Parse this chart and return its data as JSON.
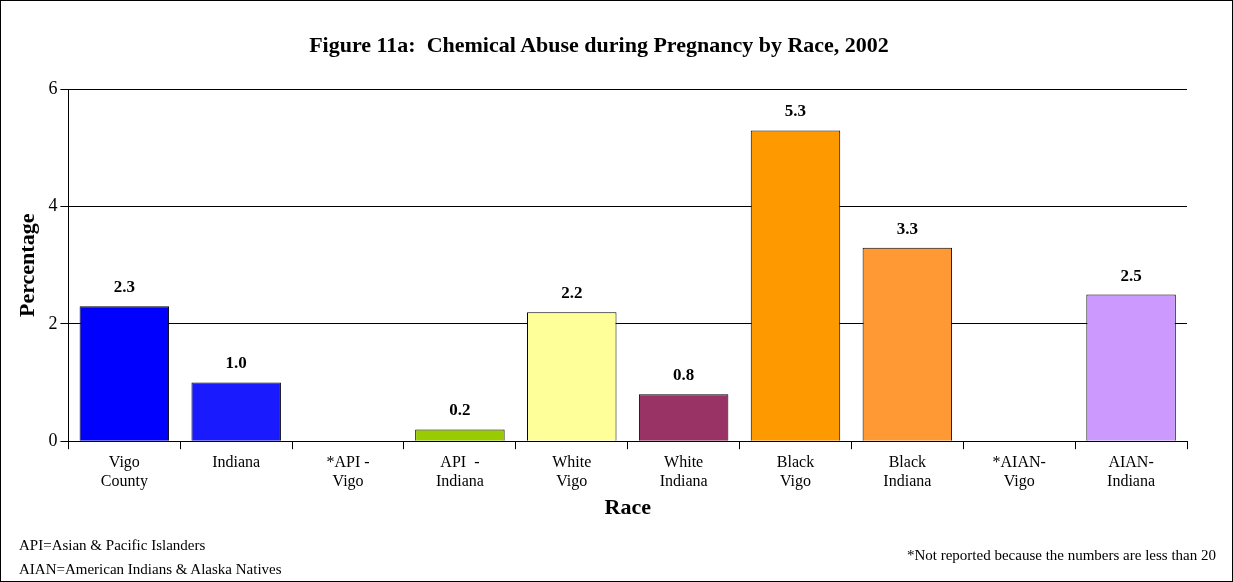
{
  "chart_data": {
    "type": "bar",
    "title": "Figure 11a:  Chemical Abuse during Pregnancy by Race, 2002",
    "xlabel": "Race",
    "ylabel": "Percentage",
    "categories": [
      "Vigo\nCounty",
      "Indiana",
      "*API -\nVigo",
      "API  -\nIndiana",
      "White\nVigo",
      "White\nIndiana",
      "Black\nVigo",
      "Black\nIndiana",
      "*AIAN-\nVigo",
      "AIAN-\nIndiana"
    ],
    "values": [
      2.3,
      1.0,
      null,
      0.2,
      2.2,
      0.8,
      5.3,
      3.3,
      null,
      2.5
    ],
    "colors": [
      "#0000ff",
      "#1a1aff",
      "#808080",
      "#99cc00",
      "#ffff99",
      "#993366",
      "#ff9900",
      "#ff9933",
      "#808080",
      "#cc99ff"
    ],
    "value_labels": [
      "2.3",
      "1.0",
      null,
      "0.2",
      "2.2",
      "0.8",
      "5.3",
      "3.3",
      null,
      "2.5"
    ],
    "ylim": [
      0,
      6
    ],
    "yticks": [
      0,
      2,
      4,
      6
    ],
    "grid": "y",
    "legend": false,
    "annotations": [
      "API=Asian & Pacific Islanders",
      "AIAN=American Indians & Alaska Natives",
      "*Not reported because the numbers are less than 20"
    ]
  }
}
